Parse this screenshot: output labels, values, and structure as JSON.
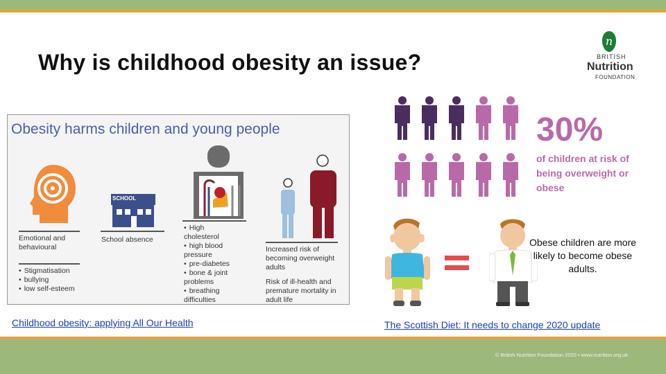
{
  "slide": {
    "title": "Why is childhood obesity an issue?",
    "logo": {
      "line1": "BRITISH",
      "line2": "Nutrition",
      "line3": "FOUNDATION"
    },
    "infographic": {
      "title": "Obesity harms children and young people",
      "school_sign": "SCHOOL",
      "emotional_label": "Emotional and behavioural",
      "emotional_bullets": [
        "Stigmatisation",
        "bullying",
        "low self-esteem"
      ],
      "school_label": "School absence",
      "physical_bullets": [
        "High cholesterol",
        "high blood pressure",
        "pre-diabetes",
        "bone & joint problems",
        "breathing difficulties"
      ],
      "risk_text_1": "Increased risk of becoming overweight adults",
      "risk_text_2": "Risk of ill-health and premature mortality in adult life"
    },
    "stat": {
      "percent": "30%",
      "text": "of children at risk of being overweight or obese"
    },
    "obese_text": "Obese children are more likely to become obese adults.",
    "links": {
      "left": "Childhood obesity: applying All Our Health",
      "right": "The Scottish Diet: It needs to change 2020 update"
    },
    "footer": "© British Nutrition Foundation 2020 • www.nutrition.org.uk",
    "colors": {
      "banner": "#9cb87a",
      "accent_line": "#e6a23c",
      "stat": "#b86aa8",
      "dark_figure": "#4a2d5e",
      "panel_title": "#4b5fa6",
      "link": "#1a3fb0"
    }
  }
}
